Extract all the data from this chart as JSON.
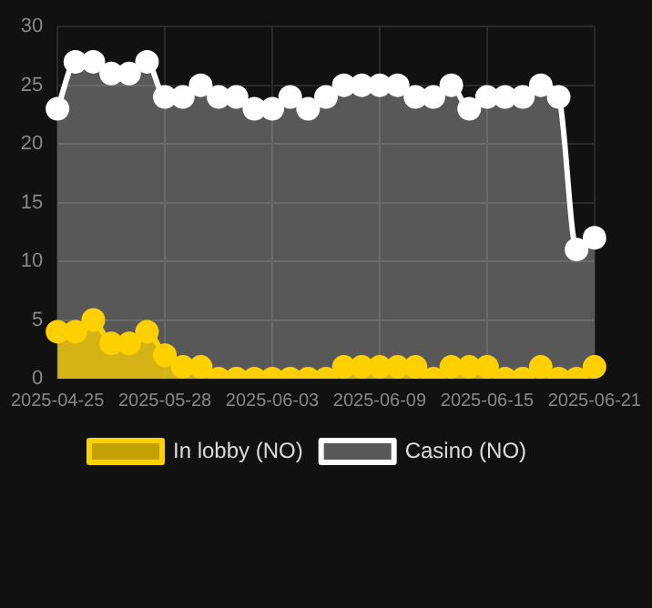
{
  "chart_data": {
    "type": "area",
    "categories": [
      "2025-04-25",
      null,
      null,
      null,
      null,
      null,
      "2025-05-28",
      null,
      null,
      null,
      null,
      null,
      "2025-06-03",
      null,
      null,
      null,
      null,
      null,
      "2025-06-09",
      null,
      null,
      null,
      null,
      null,
      "2025-06-15",
      null,
      null,
      null,
      null,
      null,
      "2025-06-21"
    ],
    "series": [
      {
        "name": "In lobby (NO)",
        "color": "#ffd000",
        "values": [
          4,
          4,
          5,
          3,
          3,
          4,
          2,
          1,
          1,
          0,
          0,
          0,
          0,
          0,
          0,
          0,
          1,
          1,
          1,
          1,
          1,
          0,
          1,
          1,
          1,
          0,
          0,
          1,
          0,
          0,
          1
        ]
      },
      {
        "name": "Casino (NO)",
        "color": "#ffffff",
        "values": [
          23,
          27,
          27,
          26,
          26,
          27,
          24,
          24,
          25,
          24,
          24,
          23,
          23,
          24,
          23,
          24,
          25,
          25,
          25,
          25,
          24,
          24,
          25,
          23,
          24,
          24,
          24,
          25,
          24,
          11,
          12
        ]
      }
    ],
    "ylim": [
      0,
      30
    ],
    "yticks": [
      0,
      5,
      10,
      15,
      20,
      25,
      30
    ],
    "grid": true,
    "legend": "bottom",
    "marker": "circle"
  }
}
